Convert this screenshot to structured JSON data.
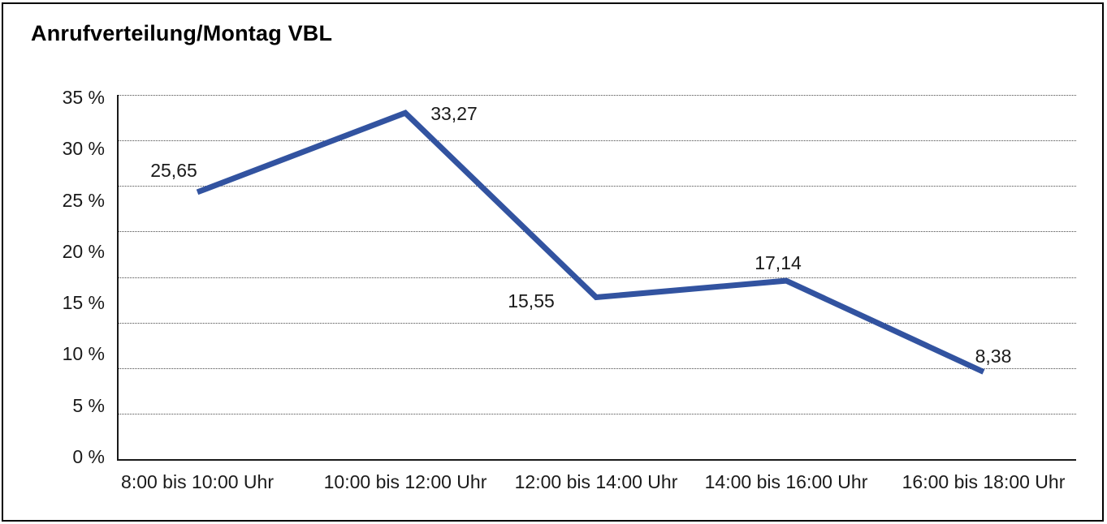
{
  "chart_data": {
    "type": "line",
    "title": "Anrufverteilung/Montag VBL",
    "categories": [
      "8:00 bis 10:00 Uhr",
      "10:00 bis 12:00 Uhr",
      "12:00 bis 14:00 Uhr",
      "14:00 bis 16:00 Uhr",
      "16:00 bis 18:00 Uhr"
    ],
    "values": [
      25.65,
      33.27,
      15.55,
      17.14,
      8.38
    ],
    "value_labels": [
      "25,65",
      "33,27",
      "15,55",
      "17,14",
      "8,38"
    ],
    "y_ticks": [
      "35 %",
      "30 %",
      "25 %",
      "20 %",
      "15 %",
      "10 %",
      "5 %",
      "0 %"
    ],
    "ylim": [
      0,
      35
    ],
    "xlabel": "",
    "ylabel": "",
    "legend": "none",
    "grid": "horizontal-dotted",
    "line_color": "#3253A0",
    "axis_color": "#1a1a1a",
    "background_color": "#ffffff"
  }
}
